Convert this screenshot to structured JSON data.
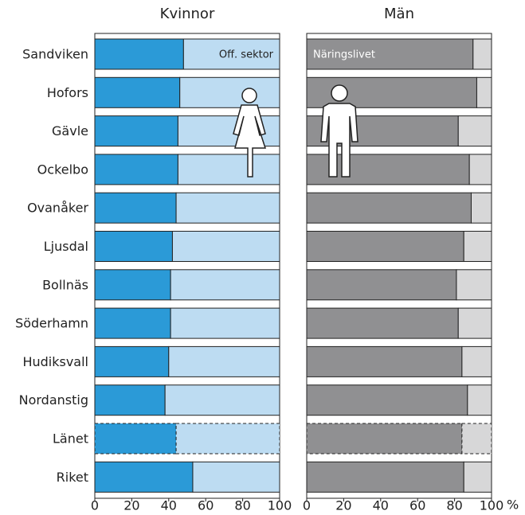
{
  "chart_data": [
    {
      "type": "bar",
      "title": "Kvinnor",
      "categories": [
        "Sandviken",
        "Hofors",
        "Gävle",
        "Ockelbo",
        "Ovanåker",
        "Ljusdal",
        "Bollnäs",
        "Söderhamn",
        "Hudiksvall",
        "Nordanstig",
        "Länet",
        "Riket"
      ],
      "series": [
        {
          "color": "#2b9ad7",
          "values": [
            48,
            46,
            45,
            45,
            44,
            42,
            41,
            41,
            40,
            38,
            44,
            53
          ]
        },
        {
          "name": "Off. sektor",
          "color": "#bddcf2",
          "values": [
            52,
            54,
            55,
            55,
            56,
            58,
            59,
            59,
            60,
            62,
            56,
            47
          ]
        }
      ],
      "xlim": [
        0,
        100
      ],
      "xticks": [
        0,
        20,
        40,
        60,
        80,
        100
      ]
    },
    {
      "type": "bar",
      "title": "Män",
      "series": [
        {
          "name": "Näringslivet",
          "color": "#909092",
          "values": [
            90,
            92,
            82,
            88,
            89,
            85,
            81,
            82,
            84,
            87,
            84,
            85
          ]
        },
        {
          "color": "#d7d7d8",
          "values": [
            10,
            8,
            18,
            12,
            11,
            15,
            19,
            18,
            16,
            13,
            16,
            15
          ]
        }
      ],
      "xlim": [
        0,
        100
      ],
      "xticks": [
        0,
        20,
        40,
        60,
        80,
        100
      ],
      "xlabel": "%"
    }
  ]
}
